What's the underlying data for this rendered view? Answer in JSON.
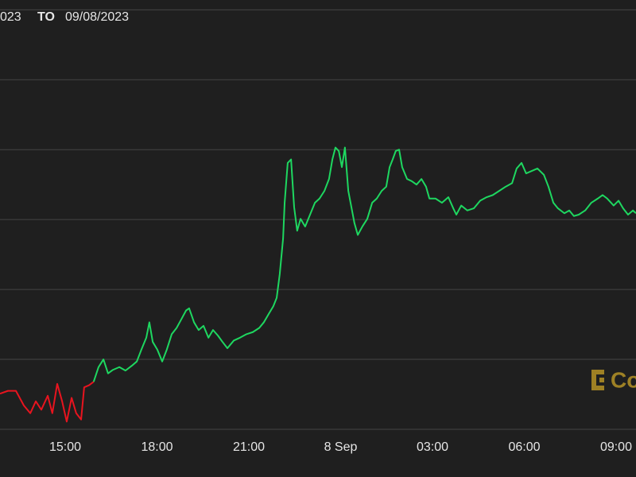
{
  "chart_data": {
    "type": "line",
    "range_from": "023",
    "range_sep": "TO",
    "range_to": "09/08/2023",
    "watermark": "Co",
    "xlim": [
      12.87,
      33.65
    ],
    "ylim": [
      0,
      6.14
    ],
    "grid": true,
    "xticks": [
      {
        "value": 15,
        "label": "15:00"
      },
      {
        "value": 18,
        "label": "18:00"
      },
      {
        "value": 21,
        "label": "21:00"
      },
      {
        "value": 24,
        "label": "8 Sep"
      },
      {
        "value": 27,
        "label": "03:00"
      },
      {
        "value": 30,
        "label": "06:00"
      },
      {
        "value": 33,
        "label": "09:00"
      }
    ],
    "series": [
      {
        "color": "#e8141f",
        "x": [
          12.87,
          13.13,
          13.39,
          13.65,
          13.86,
          14.04,
          14.22,
          14.43,
          14.58,
          14.74,
          14.9,
          15.05,
          15.21,
          15.36,
          15.52,
          15.62,
          15.78,
          15.93
        ],
        "values": [
          0.51,
          0.55,
          0.55,
          0.34,
          0.23,
          0.4,
          0.28,
          0.48,
          0.23,
          0.65,
          0.4,
          0.11,
          0.45,
          0.23,
          0.14,
          0.6,
          0.63,
          0.68
        ]
      },
      {
        "color": "#1ed760",
        "x": [
          15.93,
          16.09,
          16.25,
          16.4,
          16.56,
          16.77,
          16.97,
          17.18,
          17.34,
          17.49,
          17.65,
          17.75,
          17.86,
          18.01,
          18.17,
          18.32,
          18.48,
          18.64,
          18.79,
          18.95,
          19.05,
          19.21,
          19.36,
          19.52,
          19.68,
          19.83,
          19.99,
          20.14,
          20.3,
          20.51,
          20.71,
          20.92,
          21.13,
          21.34,
          21.49,
          21.65,
          21.8,
          21.91,
          22.01,
          22.12,
          22.17,
          22.27,
          22.38,
          22.48,
          22.58,
          22.69,
          22.84,
          23.0,
          23.16,
          23.31,
          23.47,
          23.62,
          23.73,
          23.83,
          23.94,
          24.04,
          24.14,
          24.25,
          24.35,
          24.45,
          24.56,
          24.71,
          24.87,
          25.03,
          25.18,
          25.34,
          25.49,
          25.6,
          25.7,
          25.8,
          25.91,
          26.01,
          26.17,
          26.32,
          26.48,
          26.64,
          26.79,
          26.9,
          27.1,
          27.31,
          27.52,
          27.68,
          27.78,
          27.94,
          28.14,
          28.35,
          28.56,
          28.77,
          28.97,
          29.18,
          29.39,
          29.6,
          29.75,
          29.91,
          30.06,
          30.22,
          30.43,
          30.64,
          30.79,
          30.95,
          31.1,
          31.31,
          31.47,
          31.62,
          31.78,
          31.99,
          32.19,
          32.4,
          32.56,
          32.71,
          32.92,
          33.08,
          33.23,
          33.39,
          33.55,
          33.65
        ],
        "values": [
          0.68,
          0.89,
          1.0,
          0.8,
          0.85,
          0.89,
          0.84,
          0.91,
          0.97,
          1.14,
          1.31,
          1.53,
          1.25,
          1.14,
          0.97,
          1.14,
          1.36,
          1.45,
          1.57,
          1.7,
          1.73,
          1.53,
          1.42,
          1.48,
          1.31,
          1.42,
          1.34,
          1.25,
          1.16,
          1.27,
          1.31,
          1.36,
          1.39,
          1.45,
          1.53,
          1.65,
          1.76,
          1.88,
          2.22,
          2.73,
          3.24,
          3.81,
          3.86,
          3.18,
          2.84,
          3.01,
          2.9,
          3.07,
          3.24,
          3.3,
          3.41,
          3.58,
          3.86,
          4.03,
          3.98,
          3.75,
          4.03,
          3.41,
          3.18,
          2.95,
          2.78,
          2.9,
          3.01,
          3.24,
          3.3,
          3.41,
          3.47,
          3.75,
          3.86,
          3.98,
          4.0,
          3.75,
          3.58,
          3.55,
          3.5,
          3.58,
          3.47,
          3.3,
          3.3,
          3.24,
          3.32,
          3.16,
          3.07,
          3.2,
          3.13,
          3.16,
          3.27,
          3.32,
          3.35,
          3.41,
          3.47,
          3.52,
          3.73,
          3.81,
          3.66,
          3.69,
          3.73,
          3.64,
          3.47,
          3.24,
          3.16,
          3.09,
          3.13,
          3.05,
          3.07,
          3.13,
          3.24,
          3.3,
          3.35,
          3.3,
          3.2,
          3.27,
          3.16,
          3.07,
          3.13,
          3.09
        ]
      }
    ]
  }
}
